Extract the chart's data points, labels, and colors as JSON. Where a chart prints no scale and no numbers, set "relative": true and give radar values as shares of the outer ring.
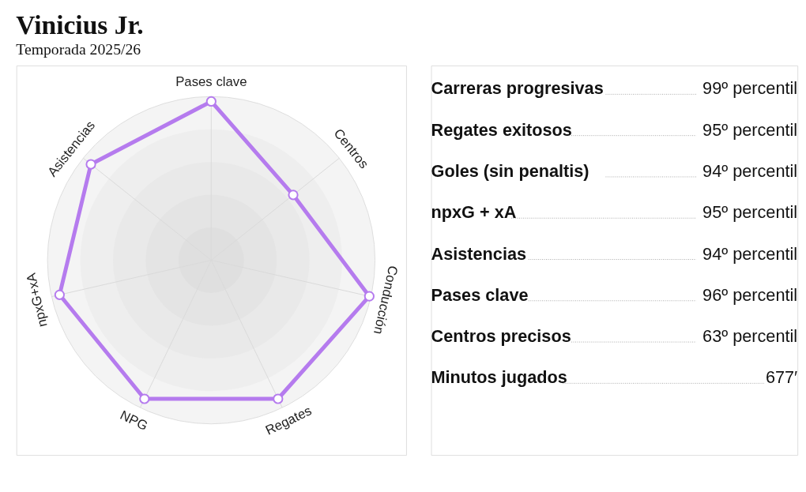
{
  "chart_data": [
    {
      "type": "radar",
      "title": "Vinicius Jr.",
      "subtitle": "Temporada 2025/26",
      "relative": true,
      "grid": true,
      "marker": "circle",
      "line_style": "solid",
      "categories": [
        "Pases clave",
        "Centros",
        "Conducción",
        "Regates",
        "NPG",
        "npxG+xA",
        "Asistencias"
      ],
      "series": [
        {
          "color": "#b57bee",
          "values": [
            0.97,
            0.64,
            0.99,
            0.94,
            0.94,
            0.95,
            0.94
          ]
        }
      ]
    },
    {
      "type": "other",
      "categories": [
        "Carreras progresivas",
        "Regates exitosos",
        "Goles (sin penaltis)",
        "npxG + xA",
        "Asistencias",
        "Pases clave",
        "Centros precisos",
        "Minutos jugados"
      ],
      "value_labels": [
        "99º percentil",
        "95º percentil",
        "94º percentil",
        "95º percentil",
        "94º percentil",
        "96º percentil",
        "63º percentil",
        "677′"
      ]
    }
  ]
}
